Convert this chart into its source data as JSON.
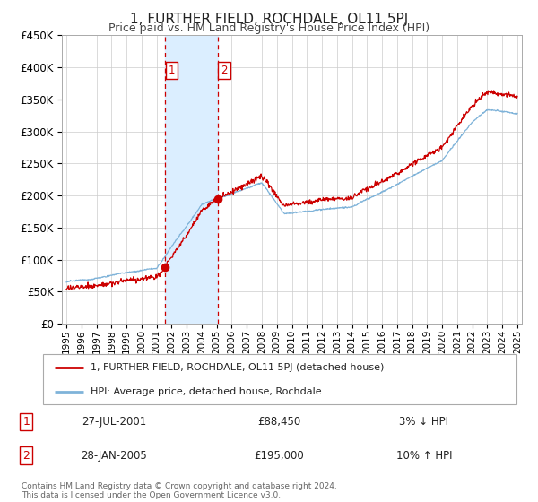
{
  "title": "1, FURTHER FIELD, ROCHDALE, OL11 5PJ",
  "subtitle": "Price paid vs. HM Land Registry's House Price Index (HPI)",
  "legend_line1": "1, FURTHER FIELD, ROCHDALE, OL11 5PJ (detached house)",
  "legend_line2": "HPI: Average price, detached house, Rochdale",
  "transaction1_date": "27-JUL-2001",
  "transaction1_price": "£88,450",
  "transaction1_hpi": "3% ↓ HPI",
  "transaction2_date": "28-JAN-2005",
  "transaction2_price": "£195,000",
  "transaction2_hpi": "10% ↑ HPI",
  "footer": "Contains HM Land Registry data © Crown copyright and database right 2024.\nThis data is licensed under the Open Government Licence v3.0.",
  "ylim": [
    0,
    450000
  ],
  "yticks": [
    0,
    50000,
    100000,
    150000,
    200000,
    250000,
    300000,
    350000,
    400000,
    450000
  ],
  "year_start": 1995,
  "year_end": 2025,
  "transaction1_year": 2001.57,
  "transaction1_value": 88450,
  "transaction2_year": 2005.08,
  "transaction2_value": 195000,
  "line_color_red": "#cc0000",
  "line_color_blue": "#7fb3d9",
  "shade_color": "#dbeeff",
  "bg_color": "#ffffff",
  "grid_color": "#cccccc",
  "marker_color": "#cc0000"
}
